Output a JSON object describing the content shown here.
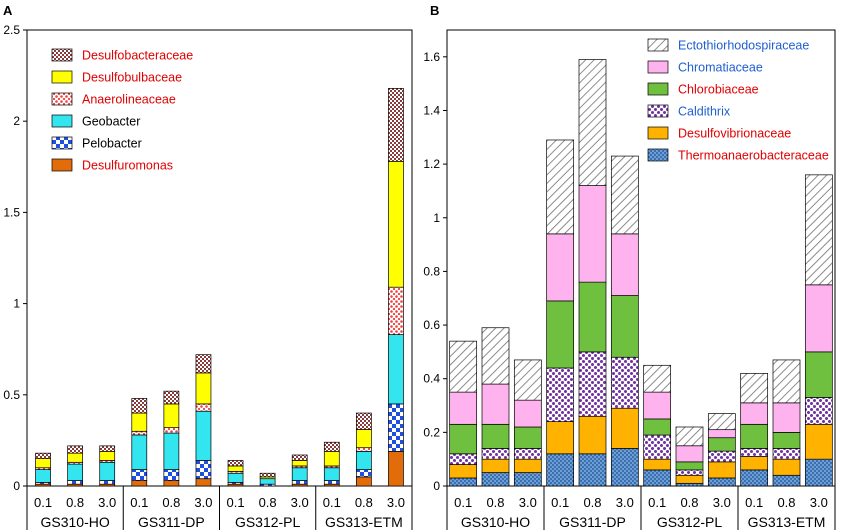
{
  "chart_data": [
    {
      "type": "bar",
      "stacked": true,
      "panel": "A",
      "title": "",
      "xlabel": "",
      "ylabel": "",
      "ylim": [
        0,
        2.5
      ],
      "yticks": [
        "0",
        "0.5",
        "1",
        "1.5",
        "2",
        "2.5"
      ],
      "ytick_values": [
        0,
        0.5,
        1,
        1.5,
        2,
        2.5
      ],
      "categories": [
        "0.1",
        "0.8",
        "3.0",
        "0.1",
        "0.8",
        "3.0",
        "0.1",
        "0.8",
        "3.0",
        "0.1",
        "0.8",
        "3.0"
      ],
      "groups": [
        "GS310-HO",
        "GS311-DP",
        "GS312-PL",
        "GS313-ETM"
      ],
      "series": [
        {
          "name": "Desulfuromonas",
          "color": "#e36c0a",
          "pattern": "solid",
          "label_color": "#e00000",
          "values": [
            0.01,
            0.01,
            0.01,
            0.03,
            0.03,
            0.04,
            0.01,
            0.0,
            0.01,
            0.01,
            0.05,
            0.19
          ]
        },
        {
          "name": "Pelobacter",
          "color": "#1f4fe0",
          "pattern": "checker",
          "label_color": "#000000",
          "values": [
            0.01,
            0.02,
            0.02,
            0.06,
            0.06,
            0.1,
            0.01,
            0.01,
            0.02,
            0.02,
            0.04,
            0.26
          ]
        },
        {
          "name": "Geobacter",
          "color": "#33e5ee",
          "pattern": "solid",
          "label_color": "#000000",
          "values": [
            0.07,
            0.09,
            0.1,
            0.19,
            0.2,
            0.27,
            0.05,
            0.03,
            0.07,
            0.07,
            0.1,
            0.38
          ]
        },
        {
          "name": "Anaerolineaceae",
          "color": "#f04040",
          "pattern": "dots",
          "label_color": "#e00000",
          "values": [
            0.01,
            0.01,
            0.01,
            0.02,
            0.03,
            0.04,
            0.01,
            0.0,
            0.01,
            0.01,
            0.02,
            0.26
          ]
        },
        {
          "name": "Desulfobulbaceae",
          "color": "#ffff00",
          "pattern": "solid",
          "label_color": "#e00000",
          "values": [
            0.05,
            0.05,
            0.05,
            0.1,
            0.13,
            0.17,
            0.03,
            0.01,
            0.03,
            0.08,
            0.1,
            0.69
          ]
        },
        {
          "name": "Desulfobacteraceae",
          "color": "#8b3a3a",
          "pattern": "crosshatch",
          "label_color": "#e00000",
          "values": [
            0.03,
            0.04,
            0.03,
            0.08,
            0.07,
            0.1,
            0.03,
            0.02,
            0.03,
            0.05,
            0.09,
            0.4
          ]
        }
      ]
    },
    {
      "type": "bar",
      "stacked": true,
      "panel": "B",
      "title": "",
      "xlabel": "",
      "ylabel": "",
      "ylim": [
        0,
        1.7
      ],
      "yticks": [
        "0",
        "0.2",
        "0.4",
        "0.6",
        "0.8",
        "1",
        "1.2",
        "1.4",
        "1.6"
      ],
      "ytick_values": [
        0,
        0.2,
        0.4,
        0.6,
        0.8,
        1,
        1.2,
        1.4,
        1.6
      ],
      "categories": [
        "0.1",
        "0.8",
        "3.0",
        "0.1",
        "0.8",
        "3.0",
        "0.1",
        "0.8",
        "3.0",
        "0.1",
        "0.8",
        "3.0"
      ],
      "groups": [
        "GS310-HO",
        "GS311-DP",
        "GS312-PL",
        "GS313-ETM"
      ],
      "series": [
        {
          "name": "Thermoanaerobacteraceae",
          "color": "#4a7fc0",
          "pattern": "dots",
          "label_color": "#e00000",
          "values": [
            0.03,
            0.05,
            0.05,
            0.12,
            0.12,
            0.14,
            0.06,
            0.01,
            0.03,
            0.06,
            0.04,
            0.1
          ]
        },
        {
          "name": "Desulfovibrionaceae",
          "color": "#ffb300",
          "pattern": "solid",
          "label_color": "#e00000",
          "values": [
            0.05,
            0.05,
            0.05,
            0.12,
            0.14,
            0.15,
            0.04,
            0.03,
            0.06,
            0.05,
            0.06,
            0.13
          ]
        },
        {
          "name": "Caldithrix",
          "color": "#7030a0",
          "pattern": "dots",
          "label_color": "#1f5fd0",
          "values": [
            0.04,
            0.04,
            0.04,
            0.2,
            0.24,
            0.19,
            0.09,
            0.02,
            0.04,
            0.03,
            0.04,
            0.1
          ]
        },
        {
          "name": "Chlorobiaceae",
          "color": "#70c040",
          "pattern": "solid",
          "label_color": "#e00000",
          "values": [
            0.11,
            0.09,
            0.08,
            0.25,
            0.26,
            0.23,
            0.06,
            0.03,
            0.05,
            0.09,
            0.06,
            0.17
          ]
        },
        {
          "name": "Chromatiaceae",
          "color": "#ffb3ee",
          "pattern": "solid",
          "label_color": "#1f5fd0",
          "values": [
            0.12,
            0.15,
            0.1,
            0.25,
            0.36,
            0.23,
            0.1,
            0.06,
            0.03,
            0.08,
            0.11,
            0.25
          ]
        },
        {
          "name": "Ectothiorhodospiraceae",
          "color": "#808080",
          "pattern": "diagonal",
          "label_color": "#1f5fd0",
          "values": [
            0.19,
            0.21,
            0.15,
            0.35,
            0.47,
            0.29,
            0.1,
            0.07,
            0.06,
            0.11,
            0.16,
            0.41
          ]
        }
      ]
    }
  ]
}
